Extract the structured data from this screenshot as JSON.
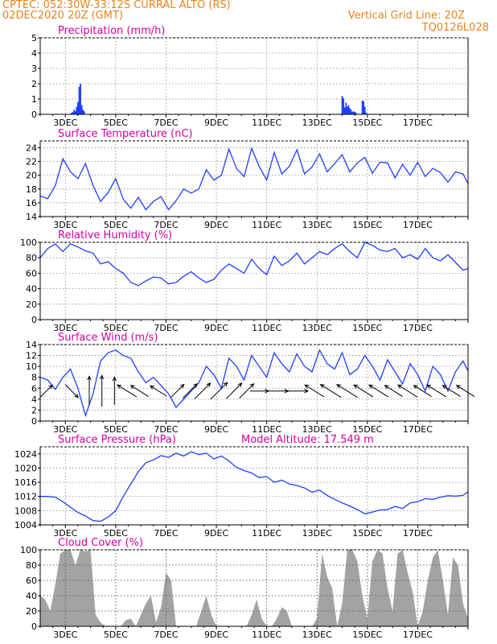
{
  "header": {
    "station": "CPTEC:   052:30W-33:12S   CURRAL ALTO (RS)",
    "run": "02DEC2020 20Z (GMT)",
    "grid_note": "Vertical Grid Line: 20Z",
    "code": "TQ0126L028"
  },
  "x_ticks": [
    "3DEC",
    "5DEC",
    "7DEC",
    "9DEC",
    "11DEC",
    "13DEC",
    "15DEC",
    "17DEC"
  ],
  "chart_data": [
    {
      "id": "precip",
      "type": "bar",
      "title": "Precipitation  (mm/h)",
      "ylim": [
        0,
        5
      ],
      "yticks": [
        0,
        1,
        2,
        3,
        4,
        5
      ],
      "color": "#1f3fff",
      "x": [
        1.25,
        1.3,
        1.35,
        1.4,
        1.45,
        1.5,
        1.55,
        1.6,
        1.65,
        1.7,
        1.75,
        12.0,
        12.05,
        12.1,
        12.15,
        12.2,
        12.25,
        12.3,
        12.35,
        12.4,
        12.45,
        12.5,
        12.55,
        12.8,
        12.85,
        12.9,
        12.95
      ],
      "values": [
        0.1,
        0.15,
        0.3,
        0.2,
        0.5,
        0.8,
        1.8,
        2.0,
        0.6,
        0.3,
        0.2,
        1.2,
        1.05,
        0.45,
        0.75,
        0.5,
        0.6,
        0.4,
        0.3,
        0.15,
        0.2,
        0.15,
        0.1,
        0.9,
        0.85,
        0.5,
        0.1
      ]
    },
    {
      "id": "temp",
      "type": "line",
      "title": "Surface Temperature (nC)",
      "ylim": [
        14,
        25
      ],
      "yticks": [
        14,
        16,
        18,
        20,
        22,
        24
      ],
      "color": "#1f3fff",
      "x": [
        0,
        0.3,
        0.6,
        0.9,
        1.2,
        1.5,
        1.8,
        2.1,
        2.4,
        2.7,
        3.0,
        3.3,
        3.6,
        3.9,
        4.2,
        4.5,
        4.8,
        5.1,
        5.4,
        5.7,
        6.0,
        6.3,
        6.6,
        6.9,
        7.2,
        7.5,
        7.8,
        8.1,
        8.4,
        8.7,
        9.0,
        9.3,
        9.6,
        9.9,
        10.2,
        10.5,
        10.8,
        11.1,
        11.4,
        11.7,
        12.0,
        12.3,
        12.6,
        12.9,
        13.2,
        13.5,
        13.8,
        14.1,
        14.4,
        14.7,
        15.0,
        15.3,
        15.6,
        15.9,
        16.2,
        16.5,
        16.8,
        17.0
      ],
      "values": [
        17,
        16.6,
        18.5,
        22.4,
        20.5,
        19.5,
        21.7,
        18.5,
        16.2,
        17.5,
        19.5,
        16.5,
        15.2,
        16.8,
        15.0,
        16.2,
        16.9,
        15.0,
        16.3,
        18.0,
        17.4,
        18.0,
        20.8,
        19.3,
        20.0,
        23.8,
        21.0,
        19.8,
        23.9,
        21.3,
        19.3,
        23.3,
        20.2,
        21.3,
        23.7,
        20.2,
        21.2,
        23.1,
        20.5,
        21.7,
        23.0,
        20.5,
        21.8,
        22.6,
        20.3,
        21.9,
        21.8,
        19.6,
        21.6,
        20.0,
        21.9,
        19.8,
        21.0,
        20.4,
        19.0,
        20.5,
        20.2,
        18.8
      ]
    },
    {
      "id": "rh",
      "type": "line",
      "title": "Relative Humidity (%)",
      "ylim": [
        0,
        100
      ],
      "yticks": [
        0,
        20,
        40,
        60,
        80,
        100
      ],
      "color": "#1f3fff",
      "x": [
        0,
        0.3,
        0.6,
        0.9,
        1.2,
        1.5,
        1.8,
        2.1,
        2.4,
        2.7,
        3.0,
        3.3,
        3.6,
        3.9,
        4.2,
        4.5,
        4.8,
        5.1,
        5.4,
        5.7,
        6.0,
        6.3,
        6.6,
        6.9,
        7.2,
        7.5,
        7.8,
        8.1,
        8.4,
        8.7,
        9.0,
        9.3,
        9.6,
        9.9,
        10.2,
        10.5,
        10.8,
        11.1,
        11.4,
        11.7,
        12.0,
        12.3,
        12.6,
        12.9,
        13.2,
        13.5,
        13.8,
        14.1,
        14.4,
        14.7,
        15.0,
        15.3,
        15.6,
        15.9,
        16.2,
        16.5,
        16.8,
        17.0
      ],
      "values": [
        80,
        92,
        98,
        88,
        98,
        94,
        89,
        86,
        72,
        75,
        66,
        60,
        48,
        44,
        50,
        55,
        54,
        46,
        48,
        56,
        62,
        54,
        48,
        52,
        64,
        72,
        66,
        60,
        78,
        66,
        58,
        82,
        70,
        76,
        86,
        72,
        80,
        88,
        84,
        92,
        98,
        88,
        80,
        100,
        96,
        90,
        88,
        92,
        80,
        84,
        78,
        92,
        80,
        76,
        84,
        74,
        64,
        66
      ]
    },
    {
      "id": "wind",
      "type": "line",
      "title": "Surface Wind (m/s)",
      "ylim": [
        0,
        14
      ],
      "yticks": [
        0,
        2,
        4,
        6,
        8,
        10,
        12,
        14
      ],
      "color": "#1f3fff",
      "x": [
        0,
        0.3,
        0.6,
        0.9,
        1.2,
        1.5,
        1.8,
        2.1,
        2.4,
        2.7,
        3.0,
        3.3,
        3.6,
        3.9,
        4.2,
        4.5,
        4.8,
        5.1,
        5.4,
        5.7,
        6.0,
        6.3,
        6.6,
        6.9,
        7.2,
        7.5,
        7.8,
        8.1,
        8.4,
        8.7,
        9.0,
        9.3,
        9.6,
        9.9,
        10.2,
        10.5,
        10.8,
        11.1,
        11.4,
        11.7,
        12.0,
        12.3,
        12.6,
        12.9,
        13.2,
        13.5,
        13.8,
        14.1,
        14.4,
        14.7,
        15.0,
        15.3,
        15.6,
        15.9,
        16.2,
        16.5,
        16.8,
        17.0
      ],
      "values": [
        8,
        7.5,
        5.8,
        8.0,
        9.5,
        6.0,
        1.0,
        5.0,
        11.0,
        12.5,
        13.0,
        12.0,
        11.5,
        9.0,
        7.0,
        8.0,
        6.5,
        5.0,
        2.5,
        4.0,
        5.5,
        7.0,
        10.0,
        8.5,
        6.0,
        11.5,
        10.0,
        7.5,
        12.0,
        10.0,
        8.0,
        12.5,
        10.5,
        9.0,
        12.3,
        10.0,
        9.0,
        13.0,
        10.5,
        9.5,
        12.5,
        8.5,
        9.5,
        12.0,
        10.0,
        7.5,
        11.2,
        9.0,
        6.8,
        10.5,
        8.5,
        5.5,
        10.0,
        8.5,
        5.5,
        9.0,
        11.0,
        9.2
      ]
    },
    {
      "id": "pressure",
      "type": "line",
      "title": "Surface Pressure (hPa)",
      "annotation": "Model Altitude: 17.549  m",
      "ylim": [
        1004,
        1026
      ],
      "yticks": [
        1004,
        1008,
        1012,
        1016,
        1020,
        1024
      ],
      "color": "#1f3fff",
      "x": [
        0,
        0.3,
        0.6,
        0.9,
        1.2,
        1.5,
        1.8,
        2.1,
        2.4,
        2.7,
        3.0,
        3.3,
        3.6,
        3.9,
        4.2,
        4.5,
        4.8,
        5.1,
        5.4,
        5.7,
        6.0,
        6.3,
        6.6,
        6.9,
        7.2,
        7.5,
        7.8,
        8.1,
        8.4,
        8.7,
        9.0,
        9.3,
        9.6,
        9.9,
        10.2,
        10.5,
        10.8,
        11.1,
        11.4,
        11.7,
        12.0,
        12.3,
        12.6,
        12.9,
        13.2,
        13.5,
        13.8,
        14.1,
        14.4,
        14.7,
        15.0,
        15.3,
        15.6,
        15.9,
        16.2,
        16.5,
        16.8,
        17.0
      ],
      "values": [
        1012,
        1012,
        1011.8,
        1010.5,
        1009,
        1007.5,
        1006.5,
        1005.2,
        1005,
        1006.2,
        1008,
        1012,
        1015.5,
        1019,
        1021.5,
        1022.3,
        1023.5,
        1023,
        1024.2,
        1023.4,
        1024.6,
        1023.8,
        1024.2,
        1022.6,
        1023.4,
        1022,
        1020.2,
        1019.3,
        1018.6,
        1017.3,
        1017.6,
        1016,
        1016.6,
        1015.5,
        1015.1,
        1014.4,
        1013.2,
        1013.8,
        1012.3,
        1011.2,
        1010.2,
        1009.3,
        1008.3,
        1007.1,
        1007.6,
        1008.2,
        1008.3,
        1009.2,
        1008.6,
        1010.2,
        1010.5,
        1011.4,
        1011.2,
        1011.8,
        1012.2,
        1012.1,
        1012.3,
        1013.3
      ]
    },
    {
      "id": "cloud",
      "type": "area",
      "title": "Cloud Cover (%)",
      "ylim": [
        0,
        100
      ],
      "yticks": [
        0,
        20,
        40,
        60,
        80,
        100
      ],
      "color": "#a3a3a3",
      "x": [
        0,
        0.2,
        0.4,
        0.6,
        0.8,
        1.0,
        1.2,
        1.4,
        1.6,
        1.8,
        2.0,
        2.2,
        2.4,
        2.6,
        2.8,
        3.0,
        3.2,
        3.4,
        3.6,
        3.8,
        4.0,
        4.2,
        4.4,
        4.6,
        4.8,
        5.0,
        5.2,
        5.4,
        5.6,
        5.8,
        6.0,
        6.2,
        6.4,
        6.6,
        6.8,
        7.0,
        7.2,
        7.4,
        7.6,
        7.8,
        8.0,
        8.2,
        8.4,
        8.6,
        8.8,
        9.0,
        9.2,
        9.4,
        9.6,
        9.8,
        10.0,
        10.2,
        10.4,
        10.6,
        10.8,
        11.0,
        11.2,
        11.4,
        11.6,
        11.8,
        12.0,
        12.2,
        12.4,
        12.6,
        12.8,
        13.0,
        13.2,
        13.4,
        13.6,
        13.8,
        14.0,
        14.2,
        14.4,
        14.6,
        14.8,
        15.0,
        15.2,
        15.4,
        15.6,
        15.8,
        16.0,
        16.2,
        16.4,
        16.6,
        16.8,
        17.0
      ],
      "values": [
        40,
        35,
        20,
        55,
        95,
        100,
        100,
        80,
        100,
        98,
        100,
        15,
        5,
        0,
        0,
        0,
        0,
        8,
        10,
        0,
        15,
        30,
        40,
        5,
        25,
        70,
        60,
        0,
        0,
        0,
        0,
        0,
        20,
        40,
        15,
        0,
        0,
        0,
        0,
        0,
        0,
        0,
        15,
        35,
        10,
        0,
        0,
        10,
        25,
        20,
        0,
        0,
        0,
        0,
        0,
        10,
        95,
        65,
        50,
        0,
        30,
        100,
        100,
        85,
        40,
        10,
        85,
        100,
        95,
        50,
        20,
        95,
        100,
        70,
        45,
        0,
        20,
        60,
        90,
        100,
        60,
        15,
        90,
        80,
        30,
        10
      ]
    }
  ],
  "wind_arrows": [
    {
      "x": 0.25,
      "speed": 5,
      "dir": "NE"
    },
    {
      "x": 1.25,
      "speed": 6,
      "dir": "SE"
    },
    {
      "x": 1.95,
      "speed": 12,
      "dir": "N"
    },
    {
      "x": 2.45,
      "speed": 13,
      "dir": "N"
    },
    {
      "x": 2.95,
      "speed": 11,
      "dir": "N"
    },
    {
      "x": 3.45,
      "speed": 9,
      "dir": "NW"
    },
    {
      "x": 3.95,
      "speed": 8,
      "dir": "NW"
    },
    {
      "x": 4.7,
      "speed": 7,
      "dir": "NW"
    },
    {
      "x": 5.45,
      "speed": 6,
      "dir": "NE"
    },
    {
      "x": 5.95,
      "speed": 7,
      "dir": "NE"
    },
    {
      "x": 6.45,
      "speed": 8,
      "dir": "NE"
    },
    {
      "x": 7.1,
      "speed": 9,
      "dir": "NE"
    },
    {
      "x": 7.7,
      "speed": 8,
      "dir": "NE"
    },
    {
      "x": 8.2,
      "speed": 7,
      "dir": "NE"
    },
    {
      "x": 8.7,
      "speed": 6,
      "dir": "E"
    },
    {
      "x": 9.45,
      "speed": 7,
      "dir": "E"
    },
    {
      "x": 10.2,
      "speed": 8,
      "dir": "E"
    },
    {
      "x": 10.9,
      "speed": 9,
      "dir": "NW"
    },
    {
      "x": 11.55,
      "speed": 10,
      "dir": "NW"
    },
    {
      "x": 12.2,
      "speed": 10,
      "dir": "NW"
    },
    {
      "x": 12.85,
      "speed": 9,
      "dir": "NW"
    },
    {
      "x": 13.45,
      "speed": 9,
      "dir": "NW"
    },
    {
      "x": 14.05,
      "speed": 8,
      "dir": "NW"
    },
    {
      "x": 14.6,
      "speed": 9,
      "dir": "NW"
    },
    {
      "x": 15.2,
      "speed": 8,
      "dir": "NW"
    },
    {
      "x": 15.75,
      "speed": 9,
      "dir": "NW"
    },
    {
      "x": 16.35,
      "speed": 8,
      "dir": "NW"
    },
    {
      "x": 16.9,
      "speed": 8,
      "dir": "NW"
    }
  ]
}
